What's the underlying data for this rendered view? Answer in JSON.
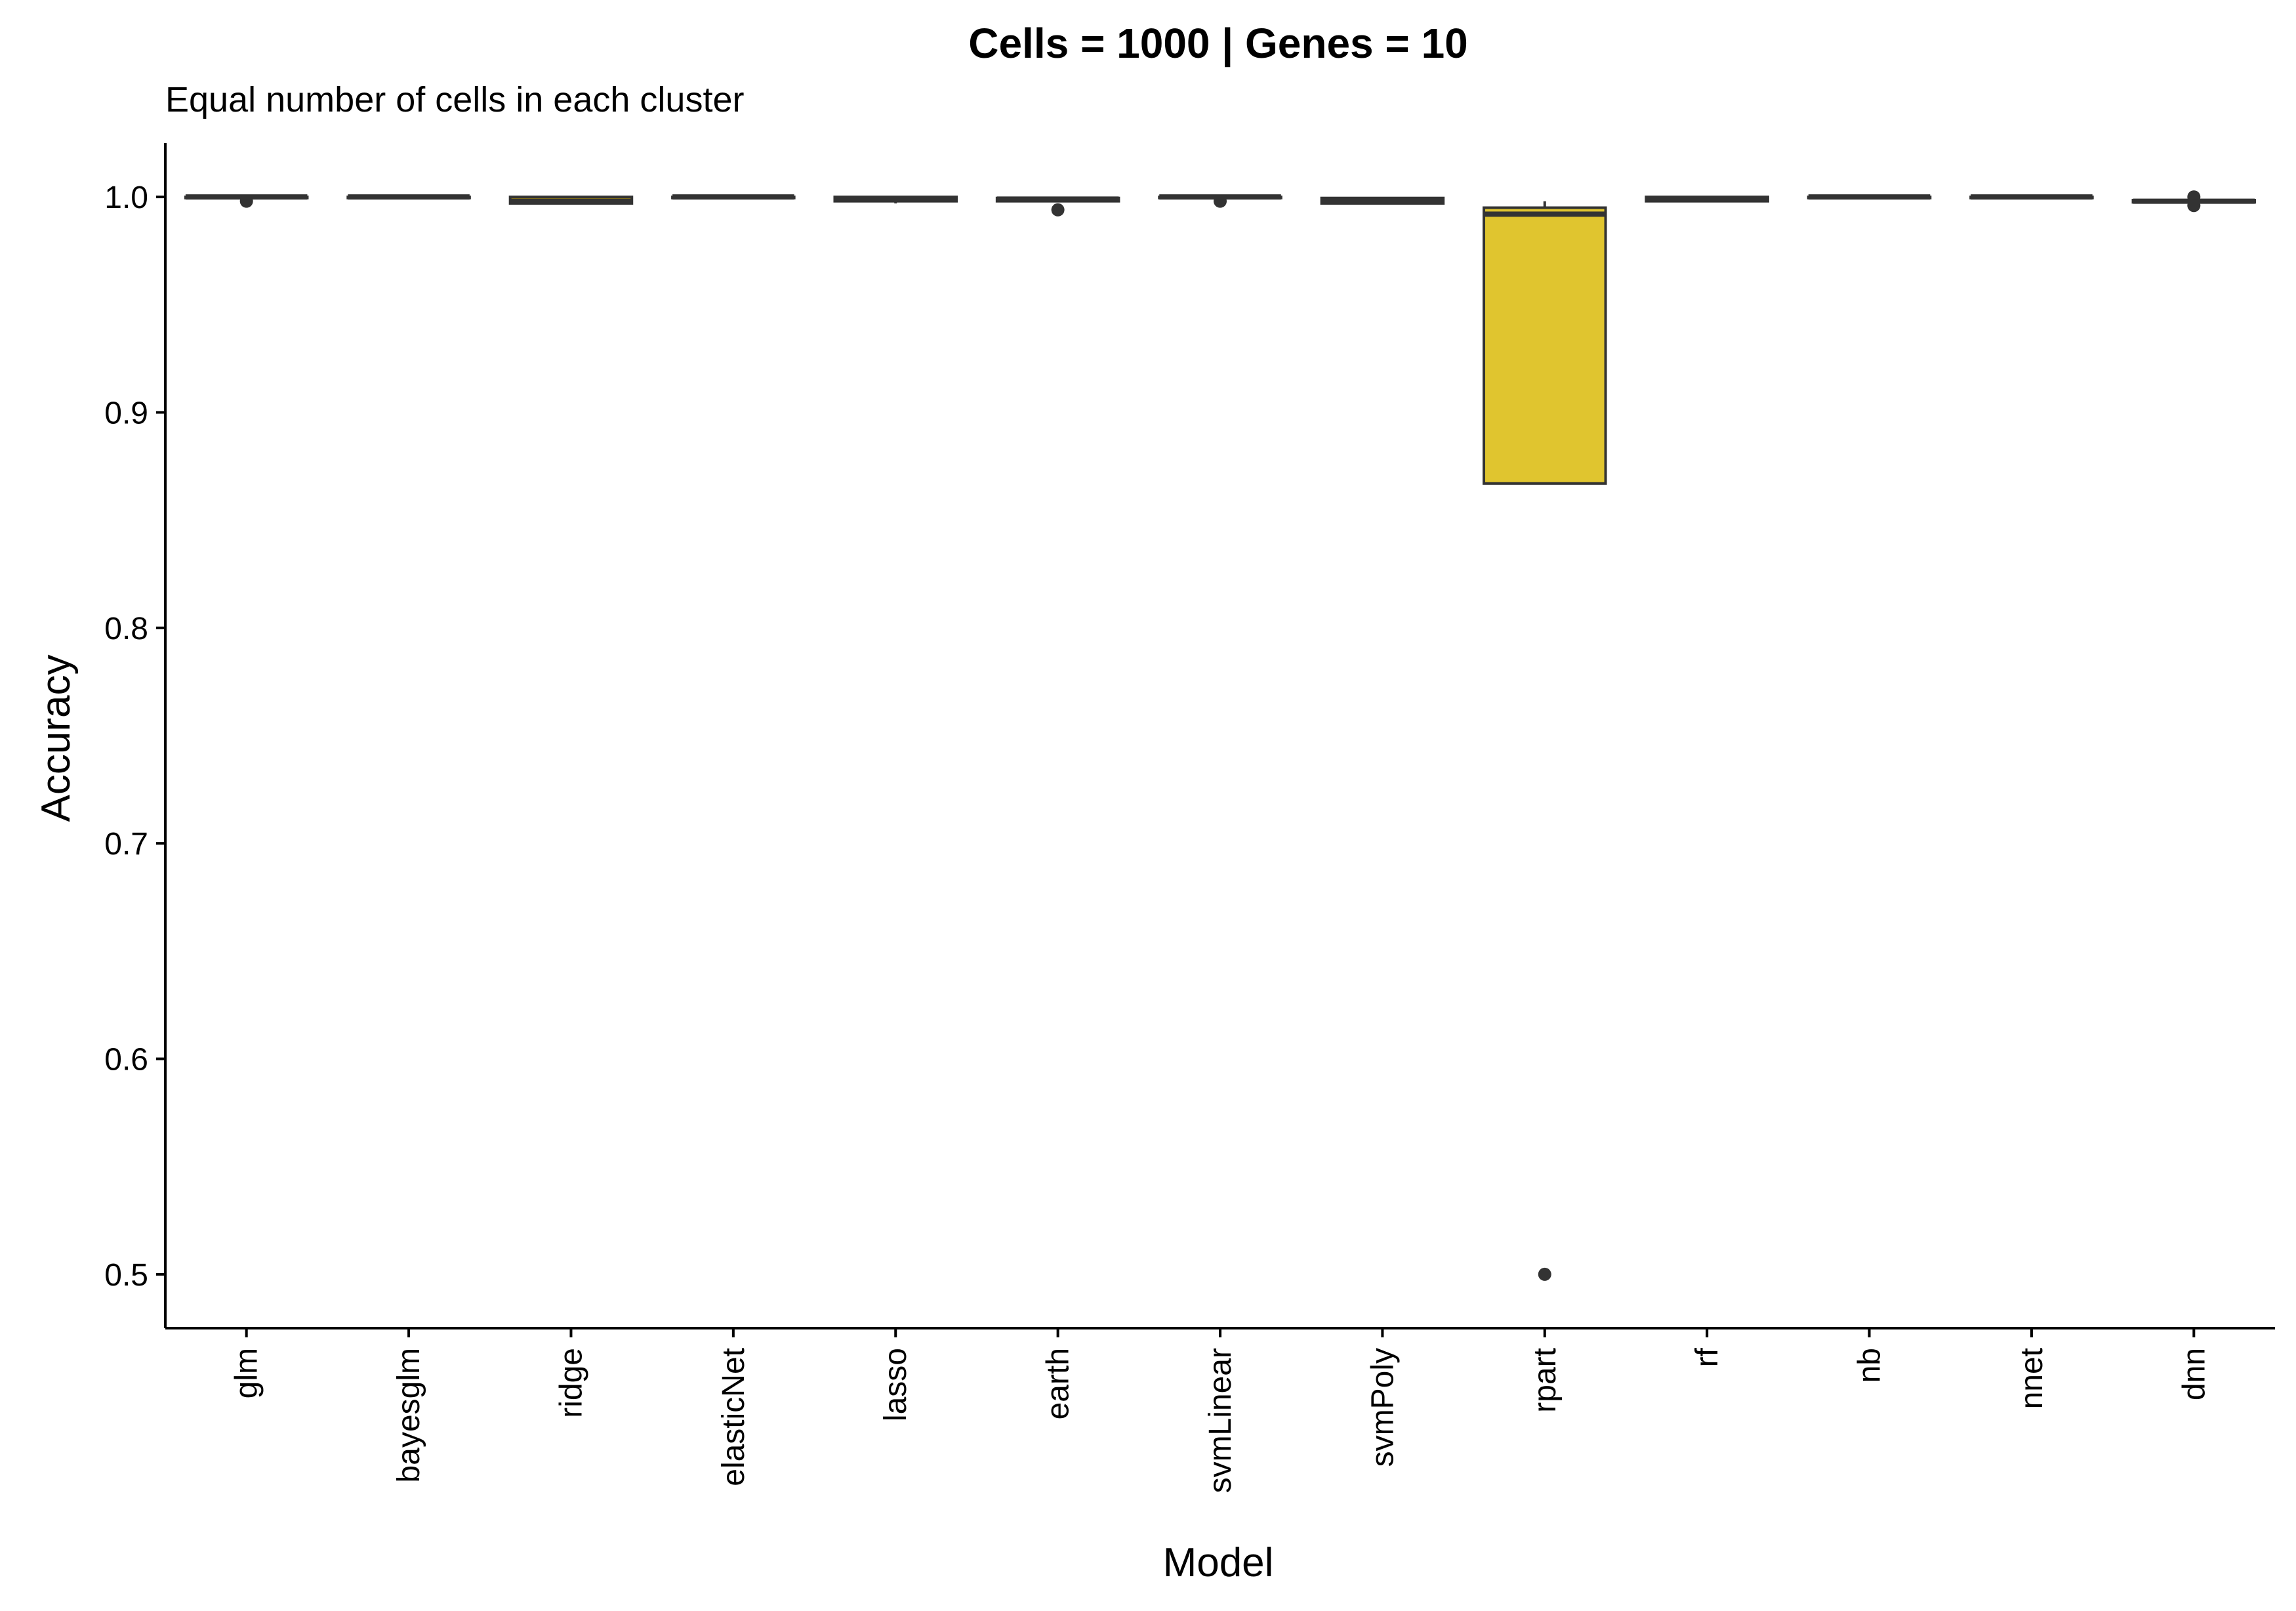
{
  "chart_data": {
    "type": "boxplot",
    "title": "Cells = 1000 | Genes = 10",
    "subtitle": "Equal number of cells in each cluster",
    "xlabel": "Model",
    "ylabel": "Accuracy",
    "ylim": [
      0.475,
      1.025
    ],
    "yticks": [
      0.5,
      0.6,
      0.7,
      0.8,
      0.9,
      1.0
    ],
    "ytick_labels": [
      "0.5",
      "0.6",
      "0.7",
      "0.8",
      "0.9",
      "1.0"
    ],
    "grid": false,
    "legend": "none",
    "box_outline_color": "#333333",
    "categories": [
      "glm",
      "bayesglm",
      "ridge",
      "elasticNet",
      "lasso",
      "earth",
      "svmLinear",
      "svmPoly",
      "rpart",
      "rf",
      "nb",
      "nnet",
      "dnn"
    ],
    "series": [
      {
        "category": "glm",
        "fill": "#F8766D",
        "q1": 0.9995,
        "median": 1.0,
        "q3": 1.0,
        "whisker_low": 0.999,
        "whisker_high": 1.0,
        "outliers": [
          0.998
        ]
      },
      {
        "category": "bayesglm",
        "fill": "#E18A00",
        "q1": 0.9995,
        "median": 1.0,
        "q3": 1.0,
        "whisker_low": 0.9995,
        "whisker_high": 1.0,
        "outliers": []
      },
      {
        "category": "ridge",
        "fill": "#BE9C00",
        "q1": 0.997,
        "median": 0.998,
        "q3": 1.0,
        "whisker_low": 0.997,
        "whisker_high": 1.0,
        "outliers": []
      },
      {
        "category": "elasticNet",
        "fill": "#8CAB00",
        "q1": 0.9995,
        "median": 1.0,
        "q3": 1.0,
        "whisker_low": 0.9995,
        "whisker_high": 1.0,
        "outliers": []
      },
      {
        "category": "lasso",
        "fill": "#24B700",
        "q1": 0.998,
        "median": 0.999,
        "q3": 1.0,
        "whisker_low": 0.997,
        "whisker_high": 1.0,
        "outliers": []
      },
      {
        "category": "earth",
        "fill": "#00BE70",
        "q1": 0.998,
        "median": 0.999,
        "q3": 0.9995,
        "whisker_low": 0.998,
        "whisker_high": 0.9995,
        "outliers": [
          0.994
        ]
      },
      {
        "category": "svmLinear",
        "fill": "#00C1AB",
        "q1": 0.9995,
        "median": 1.0,
        "q3": 1.0,
        "whisker_low": 0.9995,
        "whisker_high": 1.0,
        "outliers": [
          0.998
        ]
      },
      {
        "category": "svmPoly",
        "fill": "#00BBDA",
        "q1": 0.997,
        "median": 0.998,
        "q3": 0.9995,
        "whisker_low": 0.997,
        "whisker_high": 0.9995,
        "outliers": []
      },
      {
        "category": "rpart",
        "fill": "#E0C52F",
        "q1": 0.867,
        "median": 0.992,
        "q3": 0.995,
        "whisker_low": 0.867,
        "whisker_high": 0.998,
        "outliers": [
          0.5
        ]
      },
      {
        "category": "rf",
        "fill": "#00ACFC",
        "q1": 0.998,
        "median": 0.999,
        "q3": 1.0,
        "whisker_low": 0.998,
        "whisker_high": 1.0,
        "outliers": []
      },
      {
        "category": "nb",
        "fill": "#8B93FF",
        "q1": 0.9995,
        "median": 1.0,
        "q3": 1.0,
        "whisker_low": 0.9995,
        "whisker_high": 1.0,
        "outliers": []
      },
      {
        "category": "nnet",
        "fill": "#D575FE",
        "q1": 0.9995,
        "median": 1.0,
        "q3": 1.0,
        "whisker_low": 0.9995,
        "whisker_high": 1.0,
        "outliers": []
      },
      {
        "category": "dnn",
        "fill": "#F962DD",
        "q1": 0.9975,
        "median": 0.998,
        "q3": 0.9985,
        "whisker_low": 0.9975,
        "whisker_high": 0.9985,
        "outliers": [
          1.0,
          0.996
        ]
      }
    ]
  }
}
